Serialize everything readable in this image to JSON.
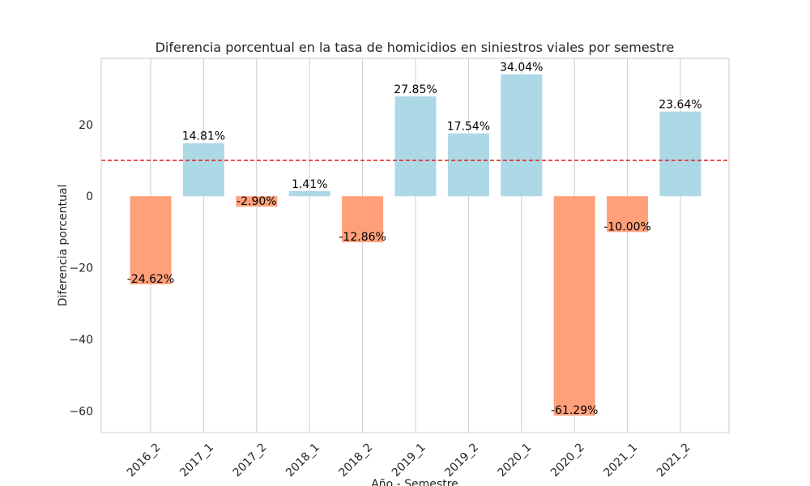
{
  "chart_data": {
    "type": "bar",
    "title": "Diferencia porcentual en la tasa de homicidios en siniestros viales por semestre",
    "xlabel": "Año - Semestre",
    "ylabel": "Diferencia porcentual",
    "categories": [
      "2016_2",
      "2017_1",
      "2017_2",
      "2018_1",
      "2018_2",
      "2019_1",
      "2019_2",
      "2020_1",
      "2020_2",
      "2021_1",
      "2021_2"
    ],
    "values": [
      -24.62,
      14.81,
      -2.9,
      1.41,
      -12.86,
      27.85,
      17.54,
      34.04,
      -61.29,
      -10.0,
      23.64
    ],
    "data_labels": [
      "-24.62%",
      "14.81%",
      "-2.90%",
      "1.41%",
      "-12.86%",
      "27.85%",
      "17.54%",
      "34.04%",
      "-61.29%",
      "-10.00%",
      "23.64%"
    ],
    "ylim": [
      -66,
      38.5
    ],
    "yticks": [
      -60,
      -40,
      -20,
      0,
      20
    ],
    "ytick_labels": [
      "−60",
      "−40",
      "−20",
      "0",
      "20"
    ],
    "reference_line": 10,
    "grid": "vertical",
    "colors": {
      "positive": "#add8e6",
      "negative": "#ffa07a",
      "reference_line": "#e31a1c",
      "grid": "#cccccc",
      "frame": "#cccccc"
    }
  }
}
